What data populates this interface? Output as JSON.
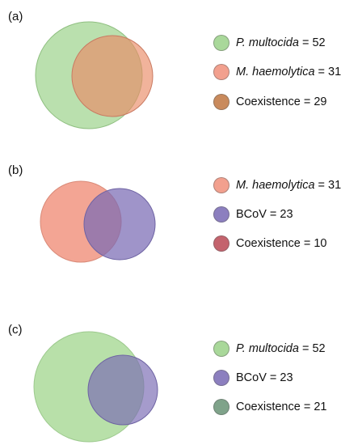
{
  "panels": [
    {
      "label": "(a)",
      "legend": [
        {
          "name": "P. multocida",
          "italic": true,
          "value": "= 52",
          "color": "#a9d89a"
        },
        {
          "name": "M. haemolytica",
          "italic": true,
          "value": "= 31",
          "color": "#f2a08e"
        },
        {
          "name": "Coexistence ",
          "italic": false,
          "value": "= 29",
          "color": "#c98a5c"
        }
      ]
    },
    {
      "label": "(b)",
      "legend": [
        {
          "name": "M. haemolytica",
          "italic": true,
          "value": "= 31",
          "color": "#f2a08e"
        },
        {
          "name": "BCoV",
          "italic": false,
          "value": "= 23",
          "color": "#8c7fbf"
        },
        {
          "name": "Coexistence ",
          "italic": false,
          "value": "= 10",
          "color": "#c4636d"
        }
      ]
    },
    {
      "label": "(c)",
      "legend": [
        {
          "name": "P. multocida",
          "italic": true,
          "value": "= 52",
          "color": "#a9d89a"
        },
        {
          "name": "BCoV",
          "italic": false,
          "value": "= 23",
          "color": "#8c7fbf"
        },
        {
          "name": "Coexistence ",
          "italic": false,
          "value": "= 21",
          "color": "#7fa38a"
        }
      ]
    }
  ],
  "colors": {
    "p_multocida": "#a9d89a",
    "m_haemolytica": "#f2a08e",
    "bcov": "#8c7fbf"
  }
}
